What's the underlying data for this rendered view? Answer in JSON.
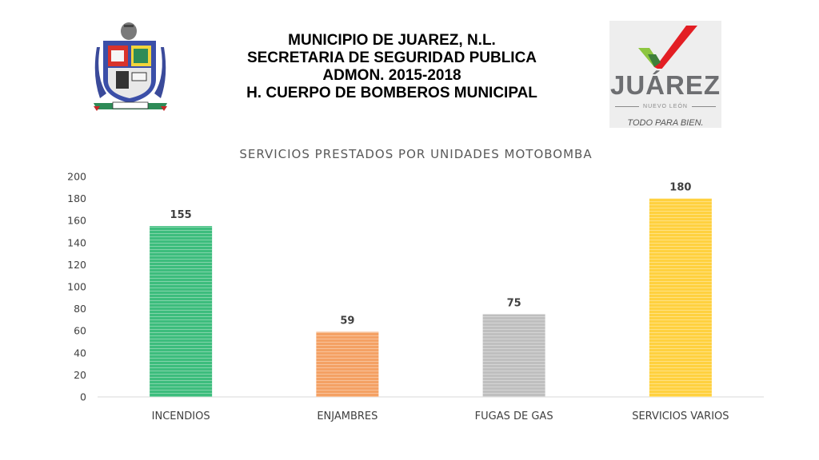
{
  "header": {
    "line1": "MUNICIPIO DE JUAREZ, N.L.",
    "line2": "SECRETARIA DE SEGURIDAD PUBLICA",
    "line3": "ADMON. 2015-2018",
    "line4": "H. CUERPO DE BOMBEROS MUNICIPAL"
  },
  "logo_right": {
    "word": "JUÁREZ",
    "sub": "NUEVO LEÓN",
    "slogan": "TODO PARA BIEN."
  },
  "chart_data": {
    "type": "bar",
    "title": "SERVICIOS PRESTADOS POR UNIDADES MOTOBOMBA",
    "categories": [
      "INCENDIOS",
      "ENJAMBRES",
      "FUGAS DE GAS",
      "SERVICIOS VARIOS"
    ],
    "values": [
      155,
      59,
      75,
      180
    ],
    "data_labels": [
      "155",
      "59",
      "75",
      "180"
    ],
    "colors": [
      "#3dbd7d",
      "#f4a164",
      "#bfbfbf",
      "#ffd13f"
    ],
    "ylim": [
      0,
      200
    ],
    "yticks": [
      0,
      20,
      40,
      60,
      80,
      100,
      120,
      140,
      160,
      180,
      200
    ],
    "grid": false,
    "legend": "none"
  }
}
